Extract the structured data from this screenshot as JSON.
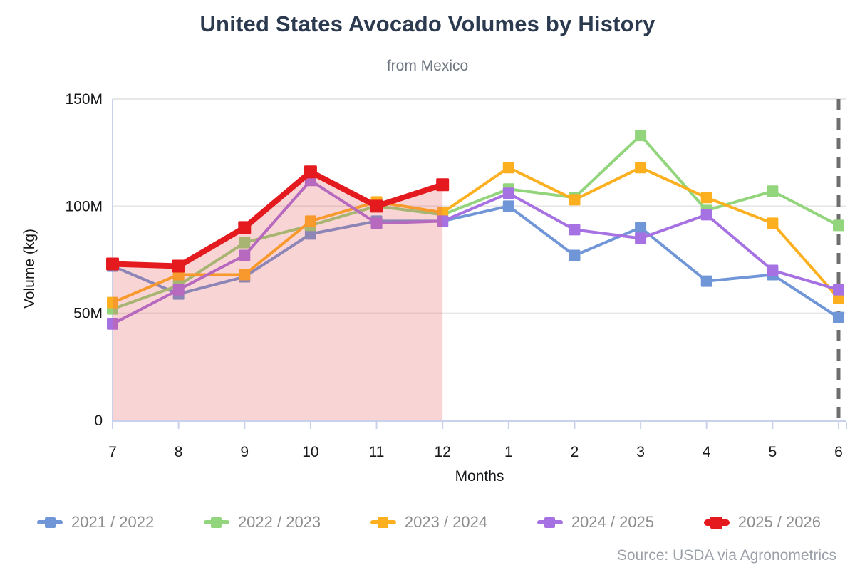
{
  "header": {
    "title": "United States Avocado Volumes by History",
    "subtitle": "from Mexico"
  },
  "chart_data": {
    "type": "line",
    "title": "United States Avocado Volumes by History",
    "subtitle": "from Mexico",
    "values_unit": "millions of kg",
    "grid": true,
    "legend_position": "bottom",
    "x_axis": {
      "label": "Months",
      "categories": [
        "7",
        "8",
        "9",
        "10",
        "11",
        "12",
        "1",
        "2",
        "3",
        "4",
        "5",
        "6"
      ]
    },
    "y_axis": {
      "label": "Volume (kg)",
      "max_millions": 150,
      "ticks": [
        {
          "v": 0,
          "t": "0"
        },
        {
          "v": 50,
          "t": "50M"
        },
        {
          "v": 100,
          "t": "100M"
        },
        {
          "v": 150,
          "t": "150M"
        }
      ]
    },
    "series": [
      {
        "name": "2021 / 2022",
        "color": "#7096d8",
        "values_millions": [
          72,
          59,
          67,
          87,
          93,
          93,
          100,
          77,
          90,
          65,
          68,
          48
        ]
      },
      {
        "name": "2022 / 2023",
        "color": "#93d57d",
        "values_millions": [
          52,
          63,
          83,
          91,
          100,
          96,
          108,
          104,
          133,
          98,
          107,
          91
        ]
      },
      {
        "name": "2023 / 2024",
        "color": "#fcb01f",
        "values_millions": [
          55,
          68,
          68,
          93,
          102,
          97,
          118,
          103,
          118,
          104,
          92,
          57
        ]
      },
      {
        "name": "2024 / 2025",
        "color": "#a671e2",
        "values_millions": [
          45,
          61,
          77,
          112,
          92,
          93,
          106,
          89,
          85,
          96,
          70,
          61
        ]
      },
      {
        "name": "2025 / 2026",
        "color": "#e41a1f",
        "emphasized": true,
        "values_millions": [
          73,
          72,
          90,
          116,
          100,
          110
        ]
      }
    ],
    "highlight_area": {
      "under_series": "2025 / 2026",
      "from_category": "7",
      "to_category": "12",
      "fill": "#e75454",
      "opacity": 0.25
    },
    "dashed_vertical_line_at_category": "6",
    "colors": {
      "grid_line": "#e7e7e7",
      "axis_line": "#c9d2ea",
      "dashed_line": "#6e6e6e"
    }
  },
  "source": {
    "text": "Source: USDA via Agronometrics"
  }
}
